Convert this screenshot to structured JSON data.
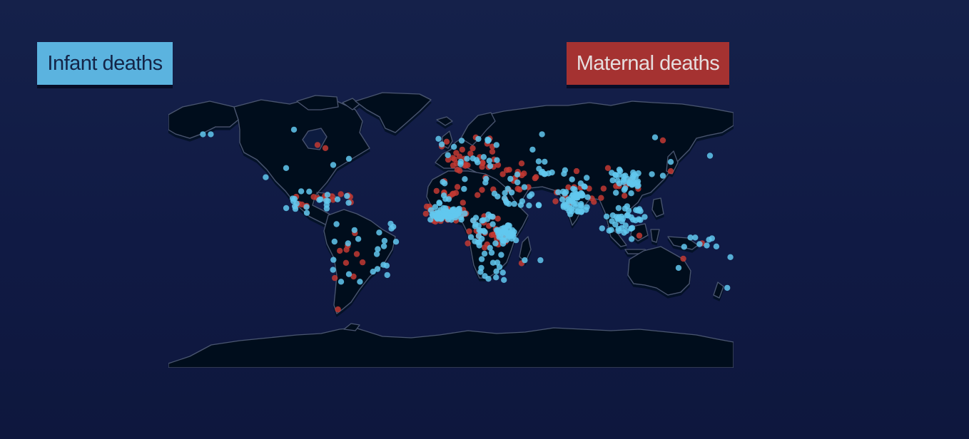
{
  "legend": {
    "infant": {
      "label": "Infant deaths",
      "color": "#5bb3df",
      "text_color": "#142447"
    },
    "maternal": {
      "label": "Maternal deaths",
      "color": "#a53231",
      "text_color": "#e6dede"
    }
  },
  "colors": {
    "background": "#121d46",
    "land": "#060c1e",
    "coastline": "#4a5670",
    "infant_point": "#62c8ef",
    "maternal_point": "#c23a33"
  },
  "map": {
    "projection": "equirectangular",
    "lon_range": [
      -180,
      180
    ],
    "lat_range": [
      -90,
      90
    ],
    "infant_clusters": [
      {
        "name": "west-africa",
        "lon": [
          -16,
          10
        ],
        "lat": [
          5,
          15
        ],
        "count": 70,
        "tight": true
      },
      {
        "name": "east-africa",
        "lon": [
          28,
          42
        ],
        "lat": [
          -10,
          5
        ],
        "count": 40,
        "tight": true
      },
      {
        "name": "central-africa",
        "lon": [
          12,
          30
        ],
        "lat": [
          -12,
          10
        ],
        "count": 25
      },
      {
        "name": "southern-africa",
        "lon": [
          18,
          35
        ],
        "lat": [
          -34,
          -15
        ],
        "count": 15
      },
      {
        "name": "north-africa",
        "lon": [
          -8,
          32
        ],
        "lat": [
          16,
          33
        ],
        "count": 12
      },
      {
        "name": "middle-east",
        "lon": [
          34,
          60
        ],
        "lat": [
          12,
          38
        ],
        "count": 20
      },
      {
        "name": "central-asia",
        "lon": [
          55,
          75
        ],
        "lat": [
          36,
          48
        ],
        "count": 10
      },
      {
        "name": "south-asia",
        "lon": [
          68,
          90
        ],
        "lat": [
          8,
          34
        ],
        "count": 55,
        "tight": true
      },
      {
        "name": "china",
        "lon": [
          100,
          122
        ],
        "lat": [
          22,
          42
        ],
        "count": 35,
        "tight": true
      },
      {
        "name": "southeast-asia",
        "lon": [
          95,
          125
        ],
        "lat": [
          -8,
          20
        ],
        "count": 40,
        "tight": true
      },
      {
        "name": "central-america",
        "lon": [
          -105,
          -78
        ],
        "lat": [
          10,
          25
        ],
        "count": 15
      },
      {
        "name": "caribbean",
        "lon": [
          -80,
          -62
        ],
        "lat": [
          15,
          24
        ],
        "count": 6
      },
      {
        "name": "south-america",
        "lon": [
          -78,
          -36
        ],
        "lat": [
          -30,
          6
        ],
        "count": 20
      },
      {
        "name": "europe",
        "lon": [
          -8,
          30
        ],
        "lat": [
          40,
          60
        ],
        "count": 20
      },
      {
        "name": "png-islands",
        "lon": [
          145,
          170
        ],
        "lat": [
          -12,
          -5
        ],
        "count": 8
      }
    ],
    "infant_points": [
      {
        "lon": -158,
        "lat": 62
      },
      {
        "lon": -153,
        "lat": 62
      },
      {
        "lon": -100,
        "lat": 65
      },
      {
        "lon": -118,
        "lat": 34
      },
      {
        "lon": -105,
        "lat": 40
      },
      {
        "lon": -75,
        "lat": 42
      },
      {
        "lon": -65,
        "lat": 46
      },
      {
        "lon": 165,
        "lat": 48
      },
      {
        "lon": 52,
        "lat": 52
      },
      {
        "lon": 58,
        "lat": 62
      },
      {
        "lon": 130,
        "lat": 60
      },
      {
        "lon": 140,
        "lat": 44
      },
      {
        "lon": 135,
        "lat": 35
      },
      {
        "lon": 128,
        "lat": 36
      },
      {
        "lon": 47,
        "lat": -20
      },
      {
        "lon": 57,
        "lat": -20
      },
      {
        "lon": 145,
        "lat": -25
      },
      {
        "lon": 176,
        "lat": -38
      },
      {
        "lon": 178,
        "lat": -18
      },
      {
        "lon": -43,
        "lat": -23
      },
      {
        "lon": -58,
        "lat": -34
      },
      {
        "lon": -70,
        "lat": -34
      },
      {
        "lon": -35,
        "lat": -8
      },
      {
        "lon": -4,
        "lat": 30
      }
    ],
    "maternal_clusters": [
      {
        "name": "west-africa",
        "lon": [
          -16,
          10
        ],
        "lat": [
          5,
          15
        ],
        "count": 30
      },
      {
        "name": "central-africa",
        "lon": [
          10,
          35
        ],
        "lat": [
          -12,
          10
        ],
        "count": 25
      },
      {
        "name": "north-africa",
        "lon": [
          -10,
          35
        ],
        "lat": [
          16,
          35
        ],
        "count": 15
      },
      {
        "name": "europe",
        "lon": [
          -10,
          28
        ],
        "lat": [
          38,
          60
        ],
        "count": 30
      },
      {
        "name": "middle-east",
        "lon": [
          32,
          55
        ],
        "lat": [
          25,
          42
        ],
        "count": 15
      },
      {
        "name": "south-asia",
        "lon": [
          66,
          92
        ],
        "lat": [
          8,
          30
        ],
        "count": 10
      },
      {
        "name": "east-asia",
        "lon": [
          95,
          120
        ],
        "lat": [
          20,
          35
        ],
        "count": 8
      },
      {
        "name": "central-america",
        "lon": [
          -100,
          -80
        ],
        "lat": [
          12,
          22
        ],
        "count": 10
      },
      {
        "name": "caribbean",
        "lon": [
          -80,
          -60
        ],
        "lat": [
          15,
          25
        ],
        "count": 6
      },
      {
        "name": "south-america",
        "lon": [
          -75,
          -40
        ],
        "lat": [
          -35,
          0
        ],
        "count": 8
      }
    ],
    "maternal_points": [
      {
        "lon": -85,
        "lat": 55
      },
      {
        "lon": -80,
        "lat": 53
      },
      {
        "lon": -72,
        "lat": -52
      },
      {
        "lon": -60,
        "lat": -16
      },
      {
        "lon": 120,
        "lat": -4
      },
      {
        "lon": 148,
        "lat": -19
      },
      {
        "lon": 160,
        "lat": -9
      },
      {
        "lon": 135,
        "lat": 58
      },
      {
        "lon": 140,
        "lat": 38
      },
      {
        "lon": 45,
        "lat": -22
      },
      {
        "lon": 80,
        "lat": 38
      },
      {
        "lon": 100,
        "lat": 40
      },
      {
        "lon": 45,
        "lat": 43
      },
      {
        "lon": 30,
        "lat": 42
      }
    ]
  }
}
